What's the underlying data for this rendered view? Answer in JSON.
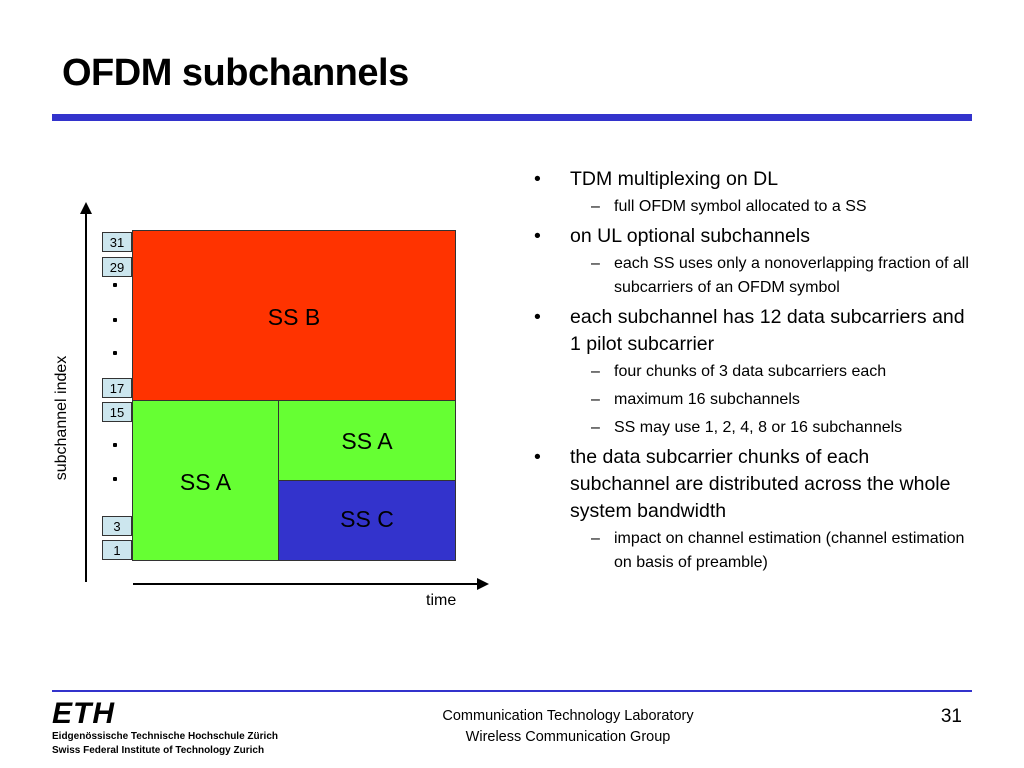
{
  "slide": {
    "title": "OFDM subchannels"
  },
  "diagram": {
    "y_axis_label": "subchannel index",
    "x_axis_label": "time",
    "blocks": {
      "ss_b": "SS B",
      "ss_a_left": "SS A",
      "ss_a_right": "SS A",
      "ss_c": "SS C"
    },
    "indices": [
      "31",
      "29",
      "17",
      "15",
      "3",
      "1"
    ],
    "colors": {
      "ss_b": "#ff3300",
      "ss_a": "#66ff33",
      "ss_c": "#3333cc",
      "index_box": "#cce6ee"
    }
  },
  "bullets": [
    {
      "text": "TDM multiplexing on DL",
      "sub": [
        "full OFDM symbol allocated to a SS"
      ]
    },
    {
      "text": "on UL optional subchannels",
      "sub": [
        "each SS uses only a nonoverlapping fraction of all subcarriers of an OFDM symbol"
      ]
    },
    {
      "text": "each subchannel has 12 data subcarriers and 1 pilot subcarrier",
      "sub": [
        "four chunks of 3 data subcarriers each",
        "maximum 16 subchannels",
        "SS may use 1, 2, 4, 8 or 16 subchannels"
      ]
    },
    {
      "text": "the data subcarrier chunks of each subchannel are distributed across the whole system bandwidth",
      "sub": [
        "impact on channel estimation (channel estimation on basis of preamble)"
      ]
    }
  ],
  "footer": {
    "logo_word": "ETH",
    "logo_line1": "Eidgenössische Technische Hochschule Zürich",
    "logo_line2": "Swiss Federal Institute of Technology Zurich",
    "lab_line1": "Communication Technology Laboratory",
    "lab_line2": "Wireless Communication Group",
    "page_number": "31"
  },
  "theme": {
    "accent": "#3333cc"
  }
}
